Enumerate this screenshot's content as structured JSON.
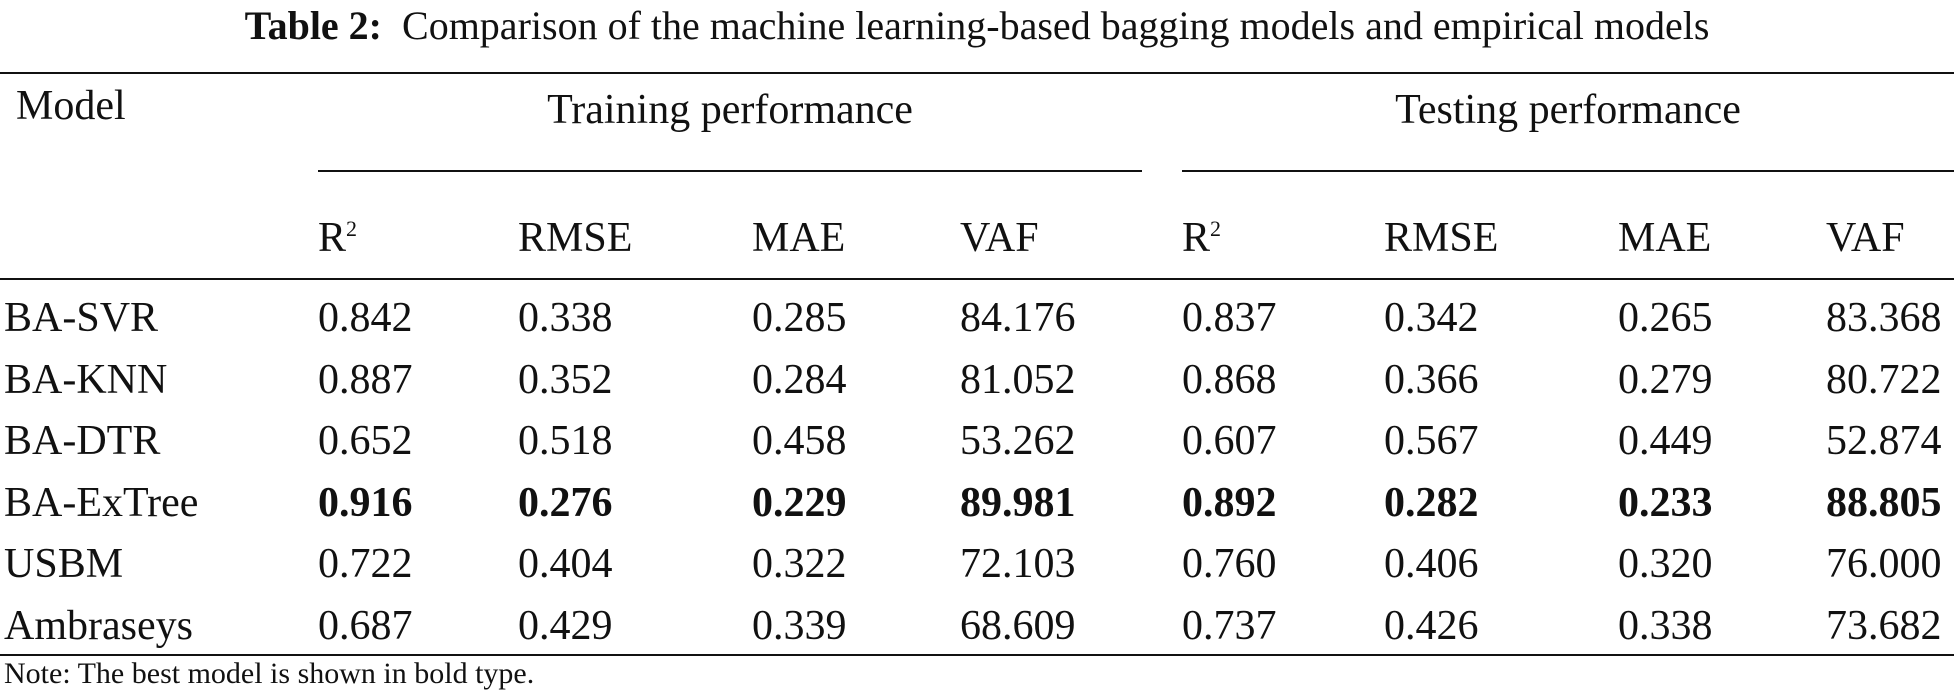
{
  "caption": {
    "label": "Table 2:",
    "text": "Comparison of the machine learning-based bagging models and empirical models"
  },
  "header": {
    "model": "Model",
    "training": "Training performance",
    "testing": "Testing performance",
    "columns": [
      "R",
      "RMSE",
      "MAE",
      "VAF",
      "R",
      "RMSE",
      "MAE",
      "VAF"
    ],
    "r_superscript": "2"
  },
  "rows": [
    {
      "model": "BA-SVR",
      "values": [
        "0.842",
        "0.338",
        "0.285",
        "84.176",
        "0.837",
        "0.342",
        "0.265",
        "83.368"
      ],
      "bold": false
    },
    {
      "model": "BA-KNN",
      "values": [
        "0.887",
        "0.352",
        "0.284",
        "81.052",
        "0.868",
        "0.366",
        "0.279",
        "80.722"
      ],
      "bold": false
    },
    {
      "model": "BA-DTR",
      "values": [
        "0.652",
        "0.518",
        "0.458",
        "53.262",
        "0.607",
        "0.567",
        "0.449",
        "52.874"
      ],
      "bold": false
    },
    {
      "model": "BA-ExTree",
      "values": [
        "0.916",
        "0.276",
        "0.229",
        "89.981",
        "0.892",
        "0.282",
        "0.233",
        "88.805"
      ],
      "bold": true
    },
    {
      "model": "USBM",
      "values": [
        "0.722",
        "0.404",
        "0.322",
        "72.103",
        "0.760",
        "0.406",
        "0.320",
        "76.000"
      ],
      "bold": false
    },
    {
      "model": "Ambraseys",
      "values": [
        "0.687",
        "0.429",
        "0.339",
        "68.609",
        "0.737",
        "0.426",
        "0.338",
        "73.682"
      ],
      "bold": false
    }
  ],
  "note": "Note: The best model is shown in bold type."
}
